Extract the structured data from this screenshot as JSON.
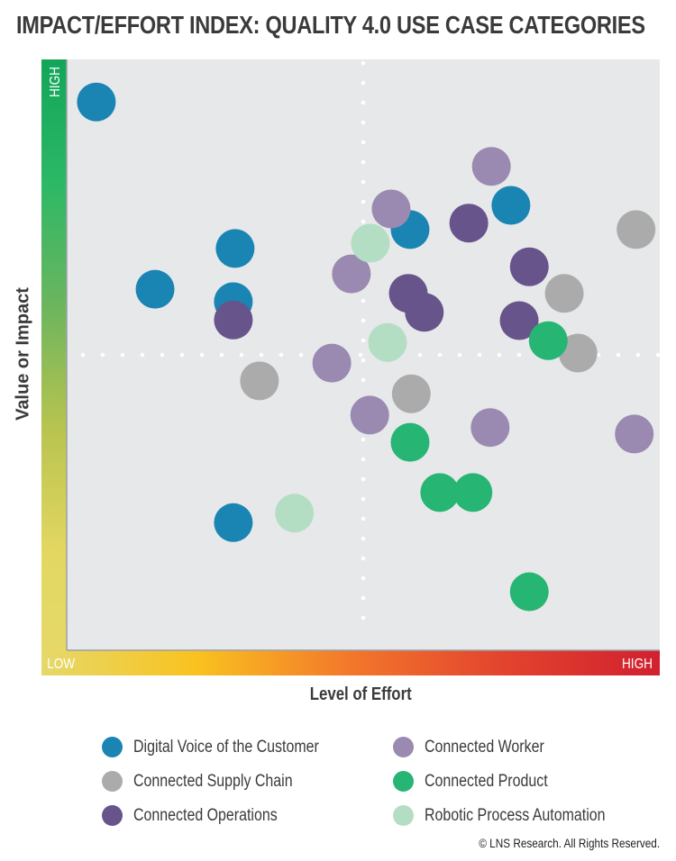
{
  "chart_data": {
    "type": "scatter",
    "title": "IMPACT/EFFORT INDEX: QUALITY 4.0 USE CASE CATEGORIES",
    "xlabel": "Level of Effort",
    "ylabel": "Value or Impact",
    "x_tick_labels": {
      "low": "LOW",
      "high": "HIGH"
    },
    "y_tick_labels": {
      "low": "LOW",
      "high": "HIGH"
    },
    "xlim": [
      0,
      100
    ],
    "ylim": [
      0,
      100
    ],
    "quadrant_dividers": {
      "x": 50,
      "y": 50,
      "style": "dotted",
      "color": "#ffffff"
    },
    "plot_background": "#e7e8ea",
    "y_axis_gradient": [
      "#12a559",
      "#2cb866",
      "#6cb55e",
      "#b8c44f",
      "#e3d762",
      "#e6d96a"
    ],
    "x_axis_gradient": [
      "#e5d96a",
      "#f9c21f",
      "#f3772b",
      "#e2432e",
      "#d1202f"
    ],
    "legend_position": "bottom",
    "series": [
      {
        "name": "Connected Supply Chain",
        "color": "#ababab",
        "points": [
          [
            96.0,
            71.2
          ],
          [
            83.9,
            60.4
          ],
          [
            86.2,
            50.3
          ],
          [
            32.5,
            45.6
          ],
          [
            58.1,
            43.4
          ]
        ]
      },
      {
        "name": "Digital Voice of the Customer",
        "color": "#1a85b3",
        "points": [
          [
            5.0,
            92.8
          ],
          [
            28.4,
            68.0
          ],
          [
            14.9,
            61.1
          ],
          [
            28.1,
            59.0
          ],
          [
            57.9,
            71.2
          ],
          [
            74.9,
            75.3
          ],
          [
            28.1,
            21.6
          ]
        ]
      },
      {
        "name": "Connected Worker",
        "color": "#9a89b1",
        "points": [
          [
            71.6,
            81.9
          ],
          [
            54.7,
            74.7
          ],
          [
            48.0,
            63.7
          ],
          [
            44.7,
            48.6
          ],
          [
            51.1,
            39.8
          ],
          [
            71.4,
            37.7
          ],
          [
            95.7,
            36.6
          ]
        ]
      },
      {
        "name": "Connected Operations",
        "color": "#67548a",
        "points": [
          [
            67.8,
            72.3
          ],
          [
            78.0,
            64.9
          ],
          [
            57.6,
            60.4
          ],
          [
            60.3,
            57.2
          ],
          [
            76.3,
            55.8
          ],
          [
            28.1,
            55.9
          ]
        ]
      },
      {
        "name": "Connected Product",
        "color": "#27b573",
        "points": [
          [
            81.2,
            52.4
          ],
          [
            57.9,
            35.2
          ],
          [
            62.9,
            26.7
          ],
          [
            68.5,
            26.7
          ],
          [
            78.0,
            9.9
          ]
        ]
      },
      {
        "name": "Robotic Process Automation",
        "color": "#b4dec3",
        "points": [
          [
            51.2,
            68.9
          ],
          [
            54.1,
            52.1
          ],
          [
            38.4,
            23.2
          ]
        ]
      }
    ]
  },
  "legend": [
    {
      "label": "Digital Voice of the Customer",
      "color": "#1a85b3"
    },
    {
      "label": "Connected Supply Chain",
      "color": "#ababab"
    },
    {
      "label": "Connected Operations",
      "color": "#67548a"
    },
    {
      "label": "Connected Worker",
      "color": "#9a89b1"
    },
    {
      "label": "Connected Product",
      "color": "#27b573"
    },
    {
      "label": "Robotic Process Automation",
      "color": "#b4dec3"
    }
  ],
  "copyright": "© LNS Research. All Rights Reserved."
}
